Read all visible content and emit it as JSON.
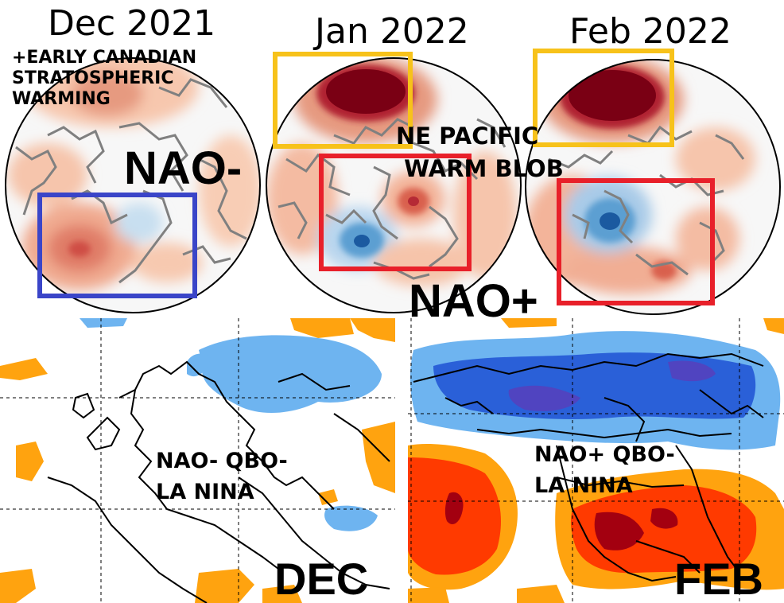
{
  "panels": {
    "dec_2021": {
      "title": "Dec 2021",
      "annotation": "+EARLY CANADIAN\nSTRATOSPHERIC\nWARMING",
      "regime": "NAO-"
    },
    "jan_2022": {
      "title": "Jan 2022",
      "annotation": "NE PACIFIC\n WARM BLOB"
    },
    "feb_2022": {
      "title": "Feb 2022",
      "regime": "NAO+"
    }
  },
  "maps": {
    "dec": {
      "label": "DEC",
      "annotation": "NAO- QBO-\nLA NINA"
    },
    "feb": {
      "label": "FEB",
      "annotation": "NAO+ QBO-\nLA NINA"
    }
  },
  "colors": {
    "highlight_yellow": "#f7c21a",
    "highlight_red": "#e8202a",
    "highlight_blue": "#3a45c8",
    "coast": "#808080",
    "warm_dark": "#7a0014",
    "warm": "#d9604e",
    "warm_light": "#f5c0a8",
    "cool": "#5c9fd2",
    "cool_dark": "#1b5aa0",
    "anom_orange": "#ffa30f",
    "anom_red": "#ff3a00",
    "anom_darkred": "#a30010",
    "anom_lightblue": "#6eb4f0",
    "anom_blue": "#2a60d8",
    "anom_purple": "#5044c0"
  }
}
